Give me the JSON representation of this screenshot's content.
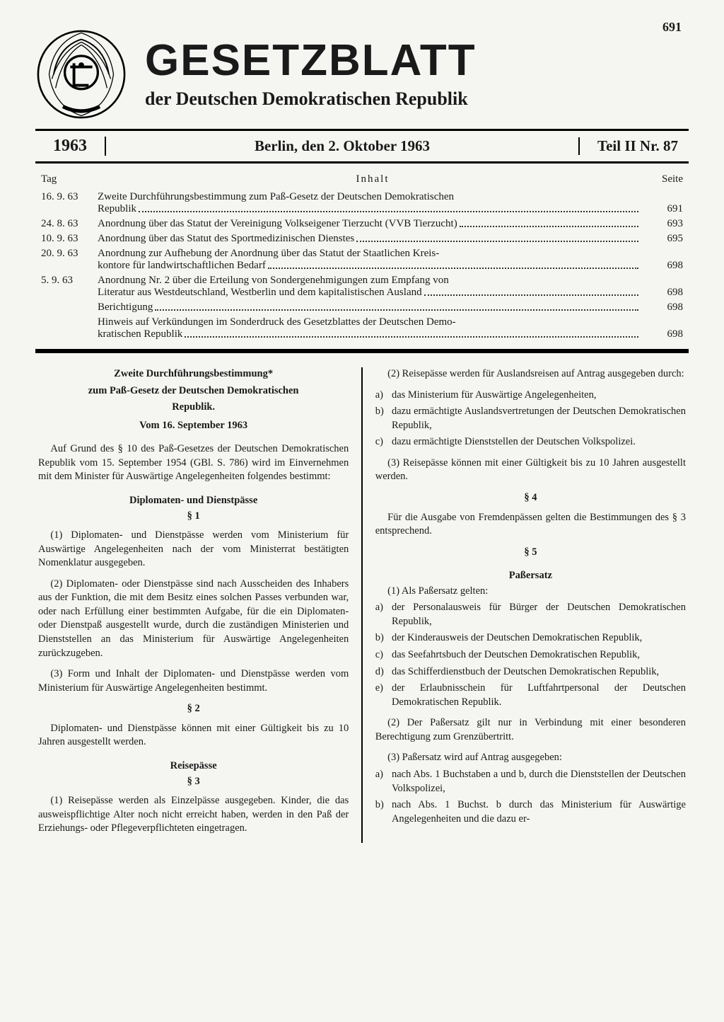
{
  "page_number": "691",
  "header": {
    "main_title": "GESETZBLATT",
    "sub_title": "der Deutschen Demokratischen Republik"
  },
  "info_bar": {
    "year": "1963",
    "place_date": "Berlin, den 2. Oktober 1963",
    "issue": "Teil II  Nr. 87"
  },
  "toc": {
    "h_tag": "Tag",
    "h_inhalt": "Inhalt",
    "h_seite": "Seite",
    "rows": [
      {
        "date": "16. 9. 63",
        "line1": "Zweite Durchführungsbestimmung zum Paß-Gesetz der Deutschen Demokratischen",
        "line2": "Republik",
        "page": "691"
      },
      {
        "date": "24. 8. 63",
        "line1": "Anordnung über das Statut der Vereinigung Volkseigener Tierzucht (VVB Tierzucht)",
        "line2": "",
        "page": "693"
      },
      {
        "date": "10. 9. 63",
        "line1": "Anordnung über das Statut des Sportmedizinischen Dienstes",
        "line2": "",
        "page": "695"
      },
      {
        "date": "20. 9. 63",
        "line1": "Anordnung zur Aufhebung der Anordnung über das Statut der Staatlichen Kreis-",
        "line2": "kontore für landwirtschaftlichen Bedarf",
        "page": "698"
      },
      {
        "date": "5. 9. 63",
        "line1": "Anordnung Nr. 2 über die Erteilung von Sondergenehmigungen zum Empfang von",
        "line2": "Literatur aus Westdeutschland, Westberlin und dem kapitalistischen Ausland",
        "page": "698"
      },
      {
        "date": "",
        "line1": "Berichtigung",
        "line2": "",
        "page": "698"
      },
      {
        "date": "",
        "line1": "Hinweis auf Verkündungen im Sonderdruck des Gesetzblattes der Deutschen Demo-",
        "line2": "kratischen Republik",
        "page": "698"
      }
    ]
  },
  "left": {
    "title1": "Zweite Durchführungsbestimmung*",
    "title2": "zum Paß-Gesetz der Deutschen Demokratischen",
    "title3": "Republik.",
    "date": "Vom 16. September 1963",
    "intro": "Auf Grund des § 10 des Paß-Gesetzes der Deutschen Demokratischen Republik vom 15. September 1954 (GBl. S. 786) wird im Einvernehmen mit dem Minister für Auswärtige Angelegenheiten folgendes bestimmt:",
    "sec1_head": "Diplomaten- und Dienstpässe",
    "sec1_num": "§ 1",
    "sec1_p1": "(1) Diplomaten- und Dienstpässe werden vom Ministerium für Auswärtige Angelegenheiten nach der vom Ministerrat bestätigten Nomenklatur ausgegeben.",
    "sec1_p2": "(2) Diplomaten- oder Dienstpässe sind nach Ausscheiden des Inhabers aus der Funktion, die mit dem Besitz eines solchen Passes verbunden war, oder nach Erfüllung einer bestimmten Aufgabe, für die ein Diplomaten- oder Dienstpaß ausgestellt wurde, durch die zuständigen Ministerien und Dienststellen an das Ministerium für Auswärtige Angelegenheiten zurückzugeben.",
    "sec1_p3": "(3) Form und Inhalt der Diplomaten- und Dienstpässe werden vom Ministerium für Auswärtige Angelegenheiten bestimmt.",
    "sec2_num": "§ 2",
    "sec2_p1": "Diplomaten- und Dienstpässe können mit einer Gültigkeit bis zu 10 Jahren ausgestellt werden.",
    "sec3_head": "Reisepässe",
    "sec3_num": "§ 3",
    "sec3_p1": "(1) Reisepässe werden als Einzelpässe ausgegeben. Kinder, die das ausweispflichtige Alter noch nicht erreicht haben, werden in den Paß der Erziehungs- oder Pflegeverpflichteten eingetragen."
  },
  "right": {
    "p2_intro": "(2) Reisepässe werden für Auslandsreisen auf Antrag ausgegeben durch:",
    "p2_list": [
      {
        "lab": "a)",
        "txt": "das Ministerium für Auswärtige Angelegenheiten,"
      },
      {
        "lab": "b)",
        "txt": "dazu ermächtigte Auslandsvertretungen der Deutschen Demokratischen Republik,"
      },
      {
        "lab": "c)",
        "txt": "dazu ermächtigte Dienststellen der Deutschen Volkspolizei."
      }
    ],
    "p3": "(3) Reisepässe können mit einer Gültigkeit bis zu 10 Jahren ausgestellt werden.",
    "sec4_num": "§ 4",
    "sec4_p": "Für die Ausgabe von Fremdenpässen gelten die Bestimmungen des § 3 entsprechend.",
    "sec5_num": "§ 5",
    "sec5_head": "Paßersatz",
    "sec5_p1_intro": "(1) Als Paßersatz gelten:",
    "sec5_list": [
      {
        "lab": "a)",
        "txt": "der Personalausweis für Bürger der Deutschen Demokratischen Republik,"
      },
      {
        "lab": "b)",
        "txt": "der Kinderausweis der Deutschen Demokratischen Republik,"
      },
      {
        "lab": "c)",
        "txt": "das Seefahrtsbuch der Deutschen Demokratischen Republik,"
      },
      {
        "lab": "d)",
        "txt": "das Schifferdienstbuch der Deutschen Demokratischen Republik,"
      },
      {
        "lab": "e)",
        "txt": "der Erlaubnisschein für Luftfahrtpersonal der Deutschen Demokratischen Republik."
      }
    ],
    "sec5_p2": "(2) Der Paßersatz gilt nur in Verbindung mit einer besonderen Berechtigung zum Grenzübertritt.",
    "sec5_p3_intro": "(3) Paßersatz wird auf Antrag ausgegeben:",
    "sec5_p3_list": [
      {
        "lab": "a)",
        "txt": "nach Abs. 1 Buchstaben a und b, durch die Dienststellen der Deutschen Volkspolizei,"
      },
      {
        "lab": "b)",
        "txt": "nach Abs. 1 Buchst. b durch das Ministerium für Auswärtige Angelegenheiten und die dazu er-"
      }
    ]
  }
}
